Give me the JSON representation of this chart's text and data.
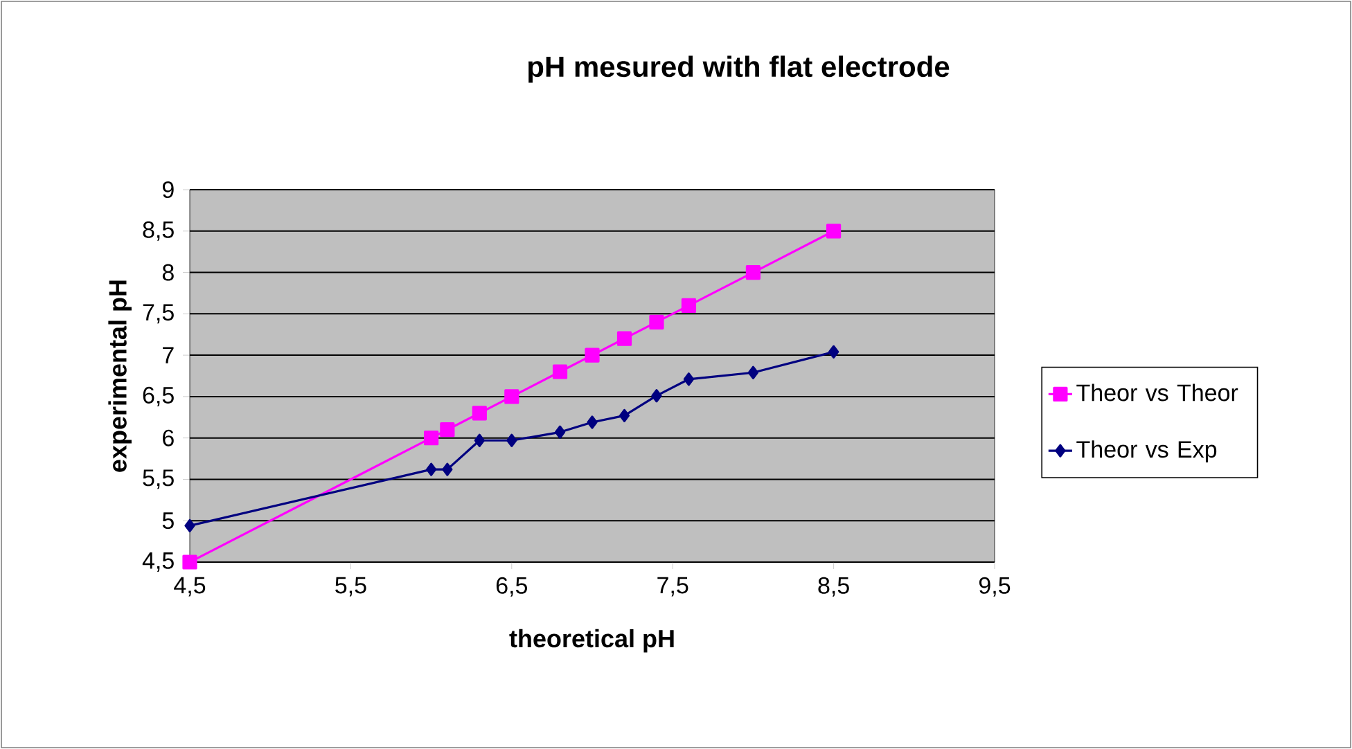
{
  "chart_data": {
    "type": "line",
    "title": "pH mesured with flat electrode",
    "xlabel": "theoretical pH",
    "ylabel": "experimental pH",
    "x": [
      4.5,
      6,
      6.1,
      6.3,
      6.5,
      6.8,
      7,
      7.2,
      7.4,
      7.6,
      8,
      8.5
    ],
    "series": [
      {
        "name": "Theor vs Theor",
        "color": "#ff00ff",
        "marker": "square",
        "values": [
          4.5,
          6,
          6.1,
          6.3,
          6.5,
          6.8,
          7,
          7.2,
          7.4,
          7.6,
          8,
          8.5
        ]
      },
      {
        "name": "Theor vs Exp",
        "color": "#000080",
        "marker": "diamond",
        "values": [
          4.94,
          5.62,
          5.62,
          5.97,
          5.97,
          6.07,
          6.19,
          6.27,
          6.51,
          6.71,
          6.79,
          7.04
        ]
      }
    ],
    "xlim": [
      4.5,
      9.5
    ],
    "ylim": [
      4.5,
      9
    ],
    "xticks": [
      {
        "value": 4.5,
        "label": "4,5"
      },
      {
        "value": 5.5,
        "label": "5,5"
      },
      {
        "value": 6.5,
        "label": "6,5"
      },
      {
        "value": 7.5,
        "label": "7,5"
      },
      {
        "value": 8.5,
        "label": "8,5"
      },
      {
        "value": 9.5,
        "label": "9,5"
      }
    ],
    "yticks": [
      {
        "value": 4.5,
        "label": "4,5"
      },
      5,
      {
        "value": 5.5,
        "label": "5,5"
      },
      6,
      {
        "value": 6.5,
        "label": "6,5"
      },
      7,
      {
        "value": 7.5,
        "label": "7,5"
      },
      8,
      {
        "value": 8.5,
        "label": "8,5"
      },
      9
    ],
    "grid": "y",
    "legend": "right",
    "line_style": "solid"
  }
}
